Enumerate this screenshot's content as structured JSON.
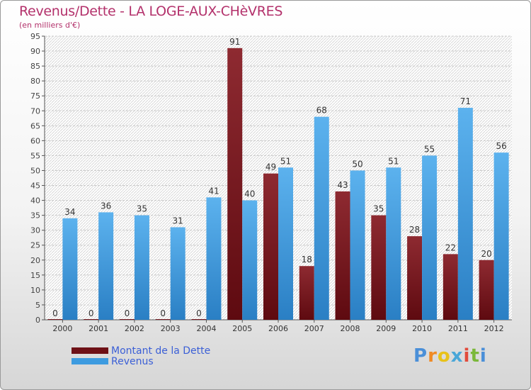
{
  "chart_data": {
    "type": "bar",
    "title": "Revenus/Dette - LA LOGE-AUX-CHèVRES",
    "subtitle": "(en milliers d'€)",
    "xlabel": "",
    "ylabel": "",
    "ylim": [
      0,
      95
    ],
    "yticks": [
      0,
      5,
      10,
      15,
      20,
      25,
      30,
      35,
      40,
      45,
      50,
      55,
      60,
      65,
      70,
      75,
      80,
      85,
      90,
      95
    ],
    "categories": [
      "2000",
      "2001",
      "2002",
      "2003",
      "2004",
      "2005",
      "2006",
      "2007",
      "2008",
      "2009",
      "2010",
      "2011",
      "2012"
    ],
    "series": [
      {
        "name": "Montant de la Dette",
        "color": "#7a1a1f",
        "values": [
          0,
          0,
          0,
          0,
          0,
          91,
          49,
          18,
          43,
          35,
          28,
          22,
          20
        ]
      },
      {
        "name": "Revenus",
        "color": "#3d9be0",
        "values": [
          34,
          36,
          35,
          31,
          41,
          40,
          51,
          68,
          50,
          51,
          55,
          71,
          56
        ]
      }
    ],
    "legend_position": "bottom-left",
    "grid": true
  },
  "brand": {
    "letters": [
      "P",
      "r",
      "o",
      "x",
      "i",
      "t",
      "i"
    ],
    "colors": [
      "#4a8fd8",
      "#f08a24",
      "#e8c21a",
      "#4aa7d8",
      "#e24b3b",
      "#7bb83a",
      "#4a8fd8"
    ]
  }
}
